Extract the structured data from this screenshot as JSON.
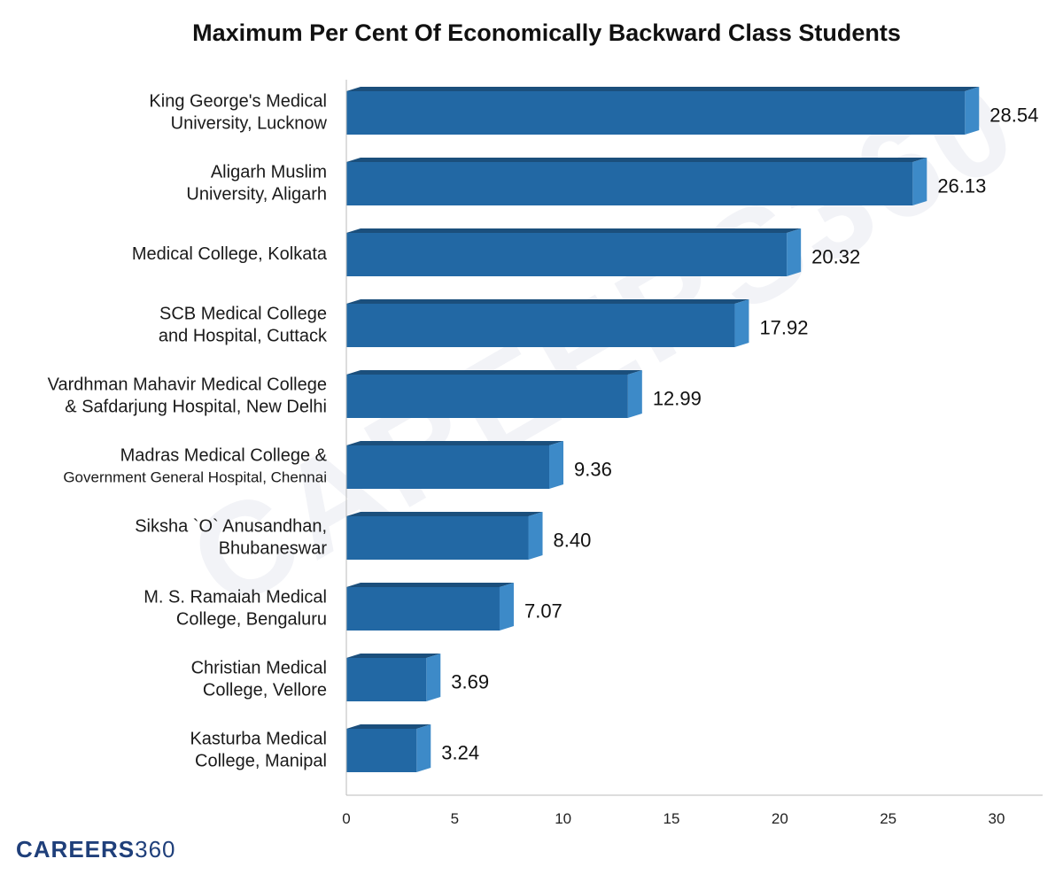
{
  "brand": {
    "watermark_text": "CAREERS360",
    "logo_primary": "CAREERS",
    "logo_secondary": "360",
    "colors": {
      "logo": "#1f3f7a"
    }
  },
  "chart_data": {
    "type": "bar",
    "orientation": "horizontal",
    "title": "Maximum Per Cent Of Economically Backward Class Students",
    "xlabel": "",
    "ylabel": "",
    "categories": [
      [
        "King George's Medical",
        "University, Lucknow"
      ],
      [
        "Aligarh Muslim",
        "University, Aligarh"
      ],
      [
        "Medical College, Kolkata"
      ],
      [
        "SCB Medical College",
        "and Hospital, Cuttack"
      ],
      [
        "Vardhman Mahavir Medical College",
        "& Safdarjung Hospital, New Delhi"
      ],
      [
        "Madras Medical College &",
        "Government General Hospital, Chennai"
      ],
      [
        "Siksha `O` Anusandhan,",
        "Bhubaneswar"
      ],
      [
        "M. S. Ramaiah Medical",
        "College, Bengaluru"
      ],
      [
        "Christian Medical",
        "College, Vellore"
      ],
      [
        "Kasturba Medical",
        "College, Manipal"
      ]
    ],
    "values": [
      28.54,
      26.13,
      20.32,
      17.92,
      12.99,
      9.36,
      8.4,
      7.07,
      3.69,
      3.24
    ],
    "value_labels": [
      "28.54",
      "26.13",
      "20.32",
      "17.92",
      "12.99",
      "9.36",
      "8.40",
      "7.07",
      "3.69",
      "3.24"
    ],
    "xlim": [
      0,
      30
    ],
    "xticks": [
      "0",
      "5",
      "10",
      "15",
      "20",
      "25",
      "30"
    ],
    "grid": false,
    "legend": "none",
    "bar_style": "3d",
    "colors": {
      "bar_front": "#2268a4",
      "bar_top": "#1b4f7c",
      "bar_side": "#3d8ac8",
      "axis": "#bbbbbb"
    }
  }
}
